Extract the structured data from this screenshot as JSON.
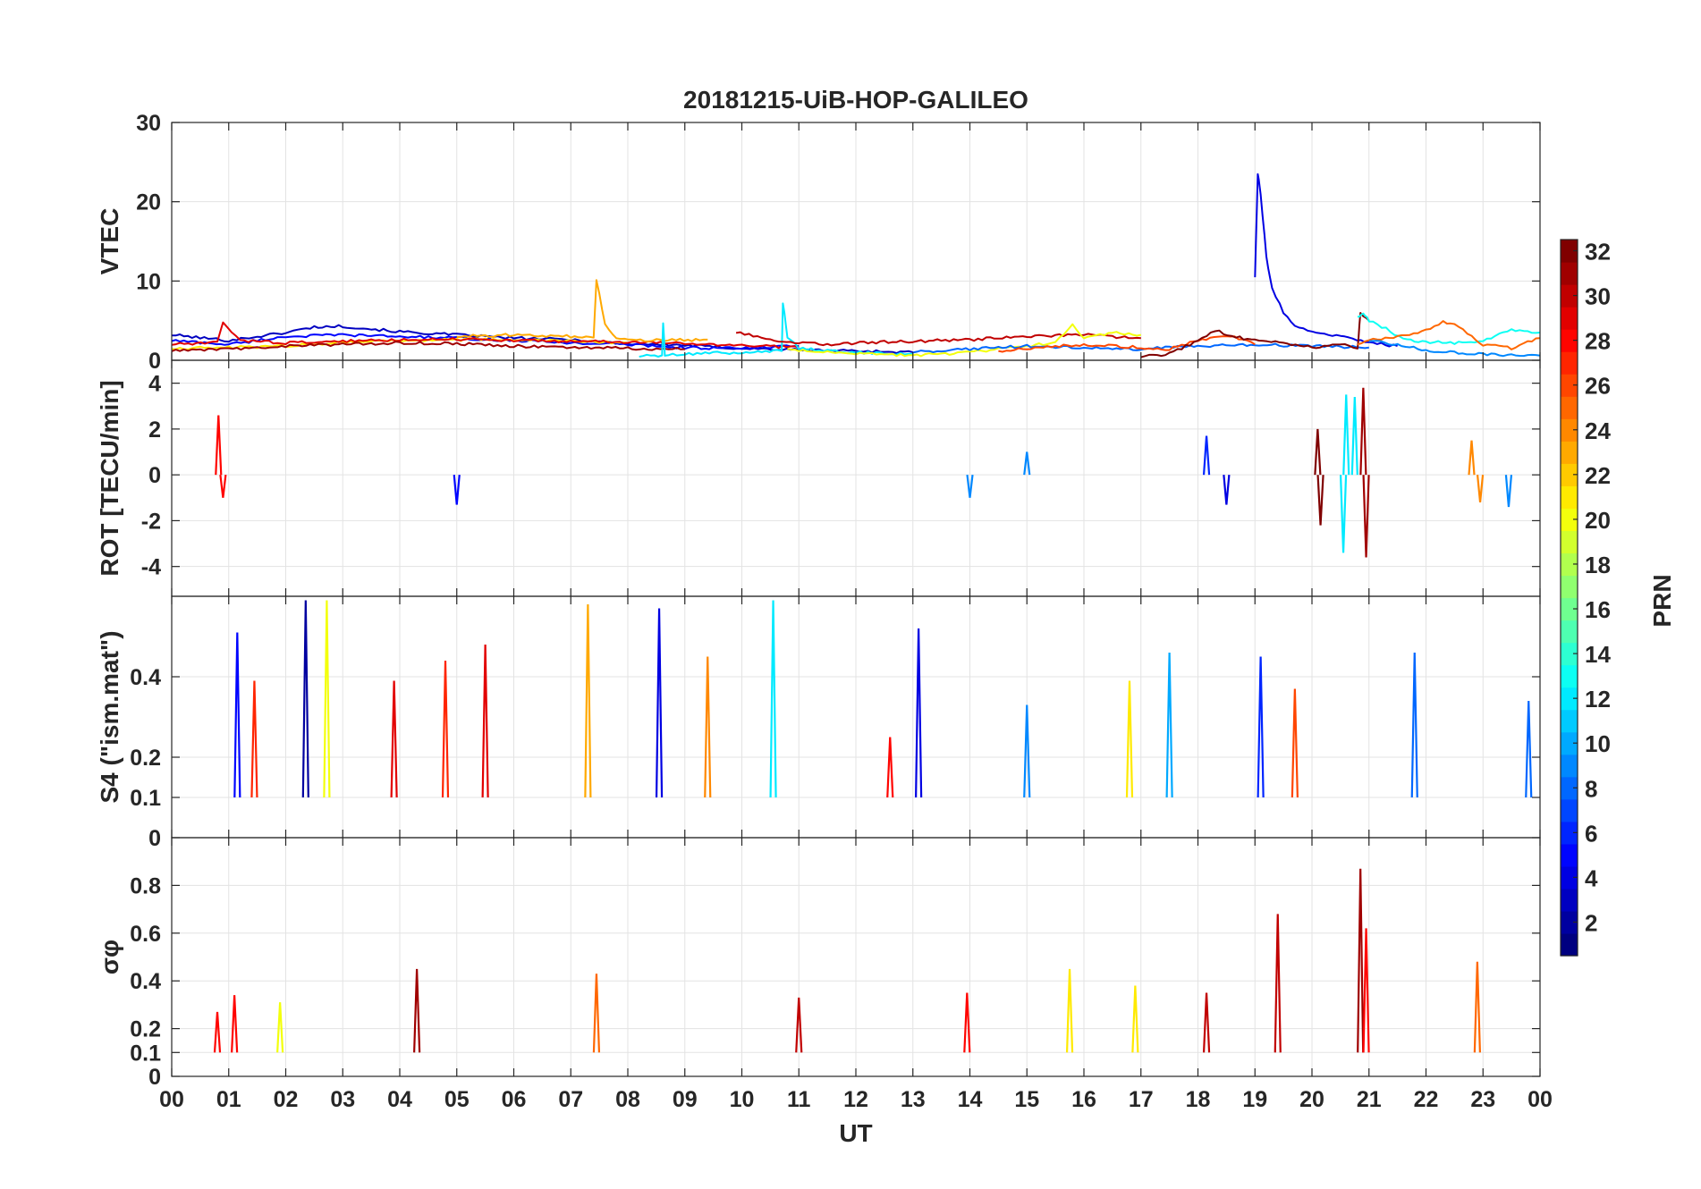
{
  "chart_data": {
    "title": "20181215-UiB-HOP-GALILEO",
    "type": "line",
    "x_axis": {
      "label": "UT",
      "range": [
        0,
        24
      ],
      "ticks": [
        0,
        1,
        2,
        3,
        4,
        5,
        6,
        7,
        8,
        9,
        10,
        11,
        12,
        13,
        14,
        15,
        16,
        17,
        18,
        19,
        20,
        21,
        22,
        23,
        24
      ],
      "tick_labels": [
        "00",
        "01",
        "02",
        "03",
        "04",
        "05",
        "06",
        "07",
        "08",
        "09",
        "10",
        "11",
        "12",
        "13",
        "14",
        "15",
        "16",
        "17",
        "18",
        "19",
        "20",
        "21",
        "22",
        "23",
        "00"
      ]
    },
    "grid": true,
    "panels": [
      {
        "id": "vtec",
        "ylabel": "VTEC",
        "ylim": [
          0,
          30
        ],
        "yticks": [
          0,
          10,
          20,
          30
        ],
        "ytick_labels": [
          "0",
          "10",
          "20",
          "30"
        ],
        "series": [
          {
            "prn": 3,
            "x": [
              0,
              1,
              2,
              2.5,
              3,
              4,
              5,
              6,
              7,
              8,
              9,
              10,
              11,
              12,
              13
            ],
            "y": [
              3.2,
              2.5,
              3.5,
              4.2,
              4.3,
              3.6,
              3.2,
              2.8,
              2.6,
              2.1,
              1.9,
              1.5,
              1.3,
              1.2,
              1.0
            ]
          },
          {
            "prn": 5,
            "x": [
              0,
              1,
              2,
              3,
              4,
              5,
              6,
              7,
              8,
              9,
              10,
              11
            ],
            "y": [
              2.5,
              2.0,
              3.0,
              3.2,
              3.0,
              2.8,
              2.5,
              2.2,
              2.0,
              1.6,
              1.5,
              1.8
            ]
          },
          {
            "prn": 21,
            "x": [
              0,
              1,
              2,
              3,
              4,
              5,
              6,
              7,
              8
            ],
            "y": [
              1.5,
              1.6,
              1.8,
              2.3,
              2.5,
              2.6,
              2.6,
              2.4,
              2.2
            ]
          },
          {
            "prn": 29,
            "x": [
              0,
              0.8,
              0.9,
              1.2,
              2,
              3,
              4,
              5,
              6,
              7,
              8,
              9,
              10,
              11
            ],
            "y": [
              2.0,
              2.2,
              4.8,
              2.5,
              2.2,
              2.4,
              2.6,
              2.7,
              2.5,
              2.4,
              2.3,
              2.1,
              1.9,
              1.6
            ]
          },
          {
            "prn": 31,
            "x": [
              0,
              1,
              2,
              3,
              4,
              5,
              6,
              7,
              8,
              9
            ],
            "y": [
              1.2,
              1.4,
              1.8,
              2.0,
              2.2,
              2.1,
              1.8,
              1.6,
              1.5,
              1.4
            ]
          },
          {
            "prn": 23,
            "x": [
              5,
              6,
              7,
              7.4,
              7.45,
              7.6,
              7.8,
              8.5,
              9.4
            ],
            "y": [
              3.0,
              3.2,
              3.0,
              2.8,
              10.2,
              4.5,
              2.6,
              2.5,
              2.6
            ]
          },
          {
            "prn": 12,
            "x": [
              8.2,
              8.6,
              8.62,
              8.65,
              9,
              10,
              10.7,
              10.72,
              10.8,
              11,
              11.5,
              12,
              13
            ],
            "y": [
              0.5,
              0.6,
              4.8,
              0.7,
              0.8,
              1.0,
              1.2,
              7.3,
              3.0,
              1.5,
              1.2,
              1.0,
              0.8
            ]
          },
          {
            "prn": 30,
            "x": [
              9.9,
              10.5,
              11,
              11.5,
              12,
              13,
              14,
              15,
              16,
              17
            ],
            "y": [
              3.5,
              2.6,
              2.2,
              2.0,
              2.2,
              2.4,
              2.6,
              3.0,
              3.2,
              2.8
            ]
          },
          {
            "prn": 20,
            "x": [
              10.8,
              11,
              12,
              13,
              14,
              15,
              15.5,
              15.8,
              16,
              16.5,
              17
            ],
            "y": [
              1.5,
              1.2,
              0.8,
              0.6,
              1.0,
              1.8,
              2.2,
              4.5,
              2.8,
              3.5,
              3.2
            ]
          },
          {
            "prn": 8,
            "x": [
              13,
              14,
              15,
              16,
              17,
              18,
              19,
              20,
              21
            ],
            "y": [
              1.0,
              1.4,
              1.8,
              1.6,
              1.4,
              1.8,
              2.0,
              1.8,
              1.6
            ]
          },
          {
            "prn": 26,
            "x": [
              14.5,
              15,
              15.5,
              16,
              17,
              17.5,
              18,
              18.5,
              19
            ],
            "y": [
              1.2,
              1.5,
              1.8,
              2.0,
              1.6,
              1.4,
              2.5,
              3.2,
              2.0
            ]
          },
          {
            "prn": 4,
            "x": [
              19,
              19.05,
              19.1,
              19.2,
              19.3,
              19.5,
              19.7,
              20,
              20.5,
              21,
              21.5
            ],
            "y": [
              10.5,
              23.5,
              21.0,
              13.0,
              9.0,
              6.0,
              4.5,
              3.5,
              3.0,
              2.2,
              1.8
            ]
          },
          {
            "prn": 32,
            "x": [
              17,
              17.5,
              18,
              18.3,
              18.6,
              19,
              19.5,
              20,
              20.5,
              20.8,
              20.85,
              21
            ],
            "y": [
              0.4,
              0.8,
              2.5,
              3.8,
              3.0,
              2.5,
              2.2,
              1.6,
              2.0,
              1.5,
              6.0,
              5.0
            ]
          },
          {
            "prn": 13,
            "x": [
              20.8,
              20.9,
              21,
              21.3,
              21.6,
              22,
              22.5,
              23,
              23.5,
              24
            ],
            "y": [
              5.5,
              6.0,
              5.0,
              4.0,
              2.6,
              2.3,
              2.2,
              2.5,
              3.8,
              3.5
            ]
          },
          {
            "prn": 25,
            "x": [
              20.8,
              21,
              21.5,
              22,
              22.3,
              22.5,
              22.8,
              23,
              23.5,
              24
            ],
            "y": [
              2.0,
              2.5,
              3.0,
              3.8,
              4.8,
              4.5,
              3.0,
              2.0,
              1.5,
              2.8
            ]
          },
          {
            "prn": 9,
            "x": [
              21,
              21.5,
              22,
              22.5,
              23,
              23.5,
              24
            ],
            "y": [
              2.4,
              2.0,
              1.2,
              1.0,
              0.8,
              0.6,
              0.6
            ]
          }
        ]
      },
      {
        "id": "rot",
        "ylabel": "ROT [TECU/min]",
        "ylim": [
          -5.3,
          5
        ],
        "yticks": [
          -4,
          -2,
          0,
          2,
          4
        ],
        "ytick_labels": [
          "-4",
          "-2",
          "0",
          "2",
          "4"
        ],
        "spikes": [
          {
            "prn": 28,
            "x": 0.82,
            "y": 2.6
          },
          {
            "prn": 28,
            "x": 0.9,
            "y": -1.0
          },
          {
            "prn": 5,
            "x": 5.0,
            "y": -1.3
          },
          {
            "prn": 9,
            "x": 14.0,
            "y": -1.0
          },
          {
            "prn": 9,
            "x": 15.0,
            "y": 1.0
          },
          {
            "prn": 6,
            "x": 18.15,
            "y": 1.7
          },
          {
            "prn": 4,
            "x": 18.5,
            "y": -1.3
          },
          {
            "prn": 32,
            "x": 20.1,
            "y": 2.0
          },
          {
            "prn": 32,
            "x": 20.15,
            "y": -2.2
          },
          {
            "prn": 12,
            "x": 20.55,
            "y": -3.4
          },
          {
            "prn": 12,
            "x": 20.6,
            "y": 3.5
          },
          {
            "prn": 12,
            "x": 20.75,
            "y": 3.4
          },
          {
            "prn": 31,
            "x": 20.9,
            "y": 3.8
          },
          {
            "prn": 31,
            "x": 20.95,
            "y": -3.6
          },
          {
            "prn": 24,
            "x": 22.8,
            "y": 1.5
          },
          {
            "prn": 24,
            "x": 22.95,
            "y": -1.2
          },
          {
            "prn": 9,
            "x": 23.45,
            "y": -1.4
          }
        ]
      },
      {
        "id": "s4",
        "ylabel": "S4 (\"ism.mat\")",
        "ylim": [
          0,
          0.6
        ],
        "yticks": [
          0,
          0.1,
          0.2,
          0.4
        ],
        "ytick_labels": [
          "0",
          "0.1",
          "0.2",
          "0.4"
        ],
        "spikes": [
          {
            "prn": 5,
            "x": 1.15,
            "y": 0.51
          },
          {
            "prn": 27,
            "x": 1.45,
            "y": 0.39
          },
          {
            "prn": 2,
            "x": 2.35,
            "y": 0.59
          },
          {
            "prn": 20,
            "x": 2.72,
            "y": 0.59
          },
          {
            "prn": 29,
            "x": 3.9,
            "y": 0.39
          },
          {
            "prn": 27,
            "x": 4.8,
            "y": 0.44
          },
          {
            "prn": 29,
            "x": 5.5,
            "y": 0.48
          },
          {
            "prn": 23,
            "x": 7.3,
            "y": 0.58
          },
          {
            "prn": 4,
            "x": 8.55,
            "y": 0.57
          },
          {
            "prn": 24,
            "x": 9.4,
            "y": 0.45
          },
          {
            "prn": 12,
            "x": 10.55,
            "y": 0.59
          },
          {
            "prn": 28,
            "x": 12.6,
            "y": 0.25
          },
          {
            "prn": 4,
            "x": 13.1,
            "y": 0.52
          },
          {
            "prn": 9,
            "x": 15.0,
            "y": 0.33
          },
          {
            "prn": 21,
            "x": 16.8,
            "y": 0.39
          },
          {
            "prn": 10,
            "x": 17.5,
            "y": 0.46
          },
          {
            "prn": 6,
            "x": 19.1,
            "y": 0.45
          },
          {
            "prn": 26,
            "x": 19.7,
            "y": 0.37
          },
          {
            "prn": 8,
            "x": 21.8,
            "y": 0.46
          },
          {
            "prn": 8,
            "x": 23.8,
            "y": 0.34
          }
        ]
      },
      {
        "id": "sigphi",
        "ylabel": "σφ",
        "ylim": [
          0,
          1.0
        ],
        "yticks": [
          0,
          0.1,
          0.2,
          0.4,
          0.6,
          0.8
        ],
        "ytick_labels": [
          "0",
          "0.1",
          "0.2",
          "0.4",
          "0.6",
          "0.8"
        ],
        "spikes": [
          {
            "prn": 28,
            "x": 0.8,
            "y": 0.27
          },
          {
            "prn": 28,
            "x": 1.1,
            "y": 0.34
          },
          {
            "prn": 20,
            "x": 1.9,
            "y": 0.31
          },
          {
            "prn": 31,
            "x": 4.3,
            "y": 0.45
          },
          {
            "prn": 25,
            "x": 7.45,
            "y": 0.43
          },
          {
            "prn": 30,
            "x": 11.0,
            "y": 0.33
          },
          {
            "prn": 28,
            "x": 13.95,
            "y": 0.35
          },
          {
            "prn": 21,
            "x": 15.75,
            "y": 0.45
          },
          {
            "prn": 21,
            "x": 16.9,
            "y": 0.38
          },
          {
            "prn": 30,
            "x": 18.15,
            "y": 0.35
          },
          {
            "prn": 30,
            "x": 19.4,
            "y": 0.68
          },
          {
            "prn": 31,
            "x": 20.85,
            "y": 0.87
          },
          {
            "prn": 28,
            "x": 20.95,
            "y": 0.62
          },
          {
            "prn": 25,
            "x": 22.9,
            "y": 0.48
          }
        ]
      }
    ],
    "colorbar": {
      "label": "PRN",
      "colormap": "jet",
      "range": [
        1,
        32
      ],
      "ticks": [
        2,
        4,
        6,
        8,
        10,
        12,
        14,
        16,
        18,
        20,
        22,
        24,
        26,
        28,
        30,
        32
      ],
      "tick_labels": [
        "2",
        "4",
        "6",
        "8",
        "10",
        "12",
        "14",
        "16",
        "18",
        "20",
        "22",
        "24",
        "26",
        "28",
        "30",
        "32"
      ]
    }
  }
}
